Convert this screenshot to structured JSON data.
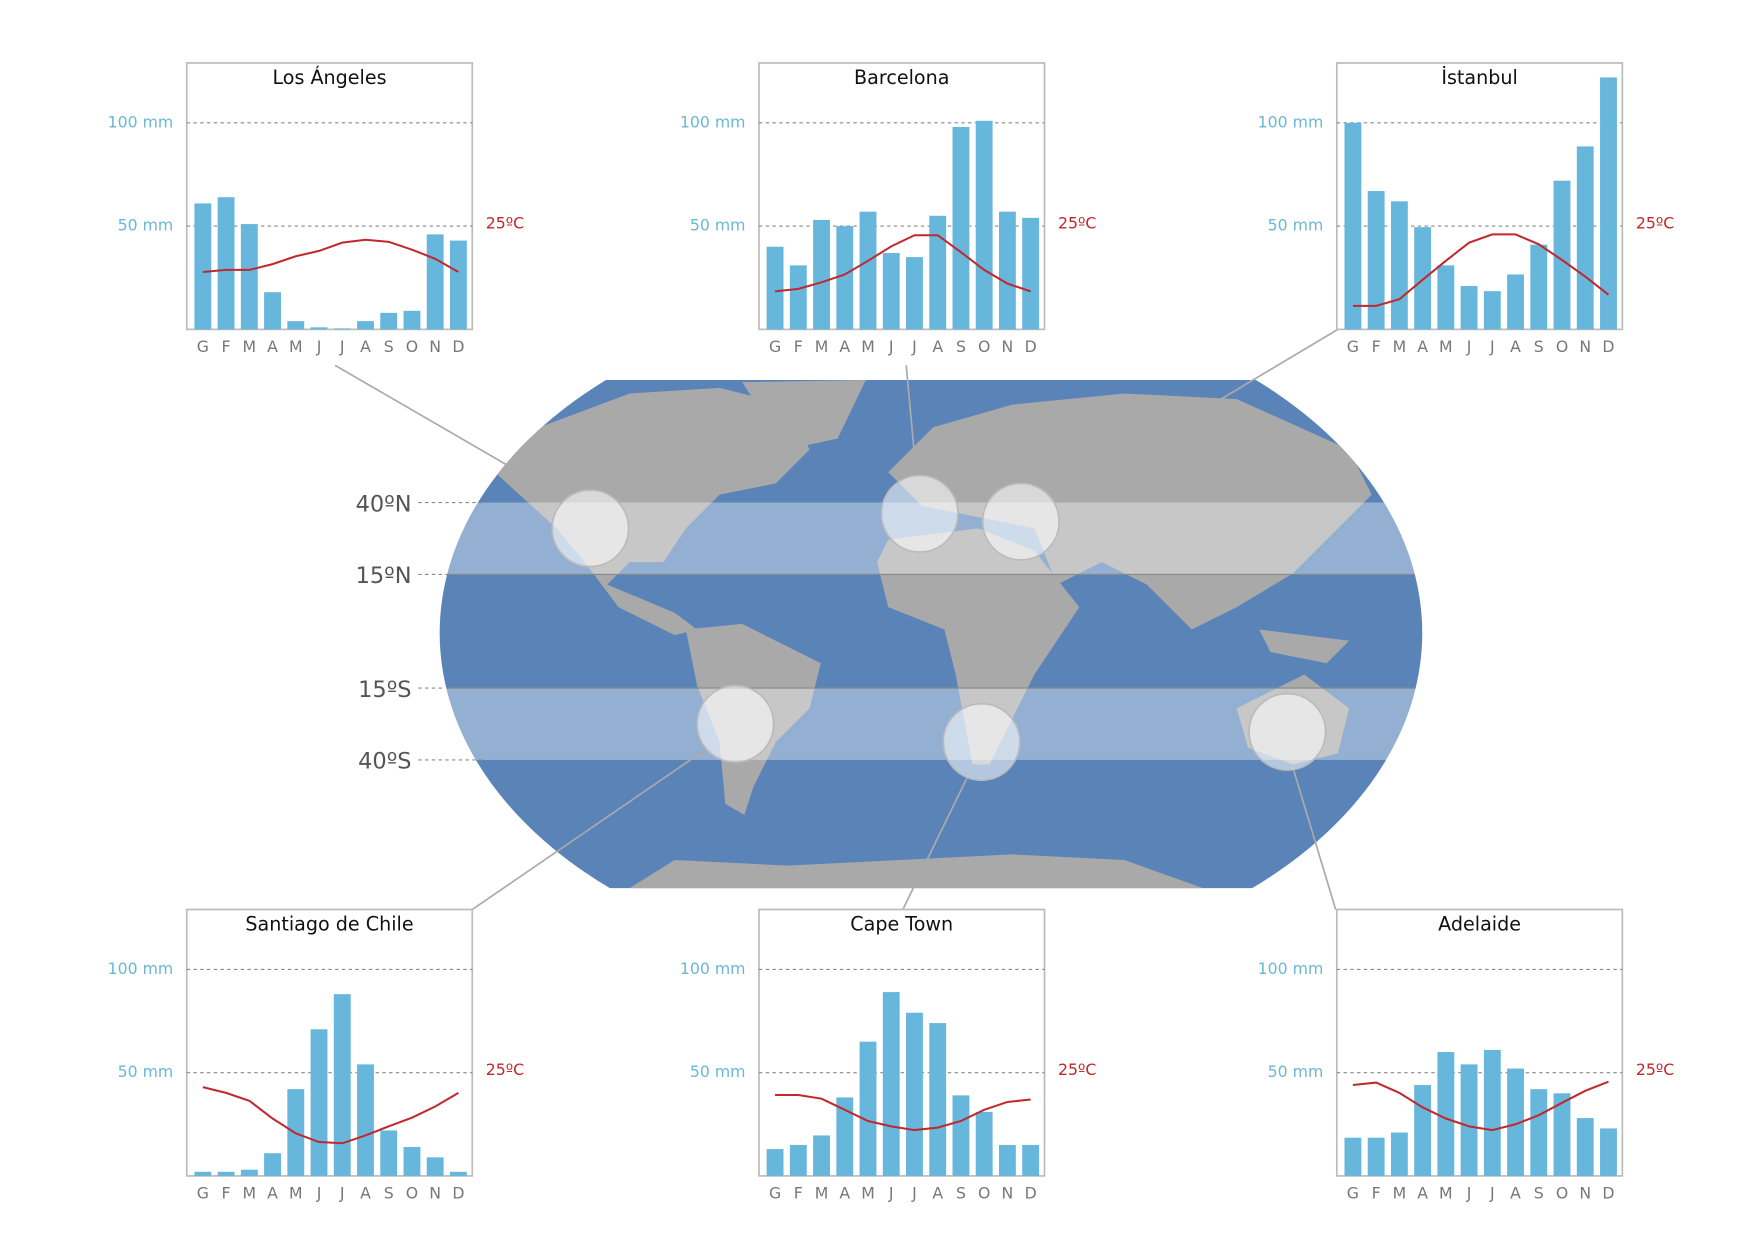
{
  "map": {
    "latitudes": [
      "40ºN",
      "15ºN",
      "15ºS",
      "40ºS"
    ]
  },
  "chart_data": [
    {
      "type": "bar",
      "title": "Los Ángeles",
      "categories": [
        "G",
        "F",
        "M",
        "A",
        "M",
        "J",
        "J",
        "A",
        "S",
        "O",
        "N",
        "D"
      ],
      "series": [
        {
          "color": "#67b6dc",
          "values": [
            61,
            64,
            51,
            18,
            4,
            1,
            0.5,
            4,
            8,
            9,
            46,
            43
          ]
        },
        {
          "type": "line",
          "axis": "y2",
          "color": "#c0282d",
          "values": [
            13.9,
            14.4,
            14.4,
            15.8,
            17.7,
            19,
            21,
            21.7,
            21.2,
            19.3,
            17.1,
            13.9
          ]
        }
      ],
      "ylim": [
        0,
        129
      ],
      "yticks": [
        {
          "value": 50,
          "label": "50 mm"
        },
        {
          "value": 100,
          "label": "100 mm"
        }
      ],
      "y2lim": [
        0,
        64.5
      ],
      "y2ticks": [
        {
          "value": 25,
          "label": "25ºC"
        }
      ],
      "grid": true
    },
    {
      "type": "bar",
      "title": "Barcelona",
      "categories": [
        "G",
        "F",
        "M",
        "A",
        "M",
        "J",
        "J",
        "A",
        "S",
        "O",
        "N",
        "D"
      ],
      "series": [
        {
          "color": "#67b6dc",
          "values": [
            40,
            31,
            53,
            50,
            57,
            37,
            35,
            55,
            98,
            101,
            57,
            54
          ]
        },
        {
          "type": "line",
          "axis": "y2",
          "color": "#c0282d",
          "values": [
            9.2,
            9.8,
            11.4,
            13.3,
            16.6,
            20.1,
            22.8,
            22.8,
            18.7,
            14.4,
            11.1,
            9.2
          ]
        }
      ],
      "ylim": [
        0,
        129
      ],
      "yticks": [
        {
          "value": 50,
          "label": "50 mm"
        },
        {
          "value": 100,
          "label": "100 mm"
        }
      ],
      "y2lim": [
        0,
        64.5
      ],
      "y2ticks": [
        {
          "value": 25,
          "label": "25ºC"
        }
      ],
      "grid": true
    },
    {
      "type": "bar",
      "title": "İstanbul",
      "categories": [
        "G",
        "F",
        "M",
        "A",
        "M",
        "J",
        "J",
        "A",
        "S",
        "O",
        "N",
        "D"
      ],
      "series": [
        {
          "color": "#67b6dc",
          "values": [
            100,
            67,
            62,
            49.5,
            31,
            21,
            18.5,
            26.6,
            41,
            72,
            88.6,
            122
          ]
        },
        {
          "type": "line",
          "axis": "y2",
          "color": "#c0282d",
          "values": [
            5.7,
            5.7,
            7.3,
            12,
            16.6,
            21,
            23,
            23,
            20.6,
            16.8,
            12.8,
            8.4
          ]
        }
      ],
      "ylim": [
        0,
        129
      ],
      "yticks": [
        {
          "value": 50,
          "label": "50 mm"
        },
        {
          "value": 100,
          "label": "100 mm"
        }
      ],
      "y2lim": [
        0,
        64.5
      ],
      "y2ticks": [
        {
          "value": 25,
          "label": "25ºC"
        }
      ],
      "grid": true
    },
    {
      "type": "bar",
      "title": "Santiago de Chile",
      "categories": [
        "G",
        "F",
        "M",
        "A",
        "M",
        "J",
        "J",
        "A",
        "S",
        "O",
        "N",
        "D"
      ],
      "series": [
        {
          "color": "#67b6dc",
          "values": [
            2,
            2,
            3,
            11,
            42,
            71,
            88,
            54,
            22,
            14,
            9,
            2
          ]
        },
        {
          "type": "line",
          "axis": "y2",
          "color": "#c0282d",
          "values": [
            21.5,
            20.1,
            18.2,
            13.9,
            10.3,
            8.2,
            7.9,
            9.8,
            12,
            14.1,
            16.8,
            20.1
          ]
        }
      ],
      "ylim": [
        0,
        129
      ],
      "yticks": [
        {
          "value": 50,
          "label": "50 mm"
        },
        {
          "value": 100,
          "label": "100 mm"
        }
      ],
      "y2lim": [
        0,
        64.5
      ],
      "y2ticks": [
        {
          "value": 25,
          "label": "25ºC"
        }
      ],
      "grid": true
    },
    {
      "type": "bar",
      "title": "Cape Town",
      "categories": [
        "G",
        "F",
        "M",
        "A",
        "M",
        "J",
        "J",
        "A",
        "S",
        "O",
        "N",
        "D"
      ],
      "series": [
        {
          "color": "#67b6dc",
          "values": [
            13,
            15,
            19.6,
            38,
            65,
            89,
            79,
            74,
            39,
            31,
            15,
            15
          ]
        },
        {
          "type": "line",
          "axis": "y2",
          "color": "#c0282d",
          "values": [
            19.6,
            19.6,
            18.7,
            16,
            13.3,
            12,
            11.1,
            11.7,
            13.3,
            16,
            17.9,
            18.5
          ]
        }
      ],
      "ylim": [
        0,
        129
      ],
      "yticks": [
        {
          "value": 50,
          "label": "50 mm"
        },
        {
          "value": 100,
          "label": "100 mm"
        }
      ],
      "y2lim": [
        0,
        64.5
      ],
      "y2ticks": [
        {
          "value": 25,
          "label": "25ºC"
        }
      ],
      "grid": true
    },
    {
      "type": "bar",
      "title": "Adelaide",
      "categories": [
        "G",
        "F",
        "M",
        "A",
        "M",
        "J",
        "J",
        "A",
        "S",
        "O",
        "N",
        "D"
      ],
      "series": [
        {
          "color": "#67b6dc",
          "values": [
            18.5,
            18.5,
            21,
            44,
            60,
            54,
            61,
            52,
            42,
            40,
            28,
            23
          ]
        },
        {
          "type": "line",
          "axis": "y2",
          "color": "#c0282d",
          "values": [
            22,
            22.6,
            20.1,
            16.6,
            13.9,
            12,
            11.1,
            12.5,
            14.7,
            17.7,
            20.6,
            22.8
          ]
        }
      ],
      "ylim": [
        0,
        129
      ],
      "yticks": [
        {
          "value": 50,
          "label": "50 mm"
        },
        {
          "value": 100,
          "label": "100 mm"
        }
      ],
      "y2lim": [
        0,
        64.5
      ],
      "y2ticks": [
        {
          "value": 25,
          "label": "25ºC"
        }
      ],
      "grid": true
    }
  ]
}
